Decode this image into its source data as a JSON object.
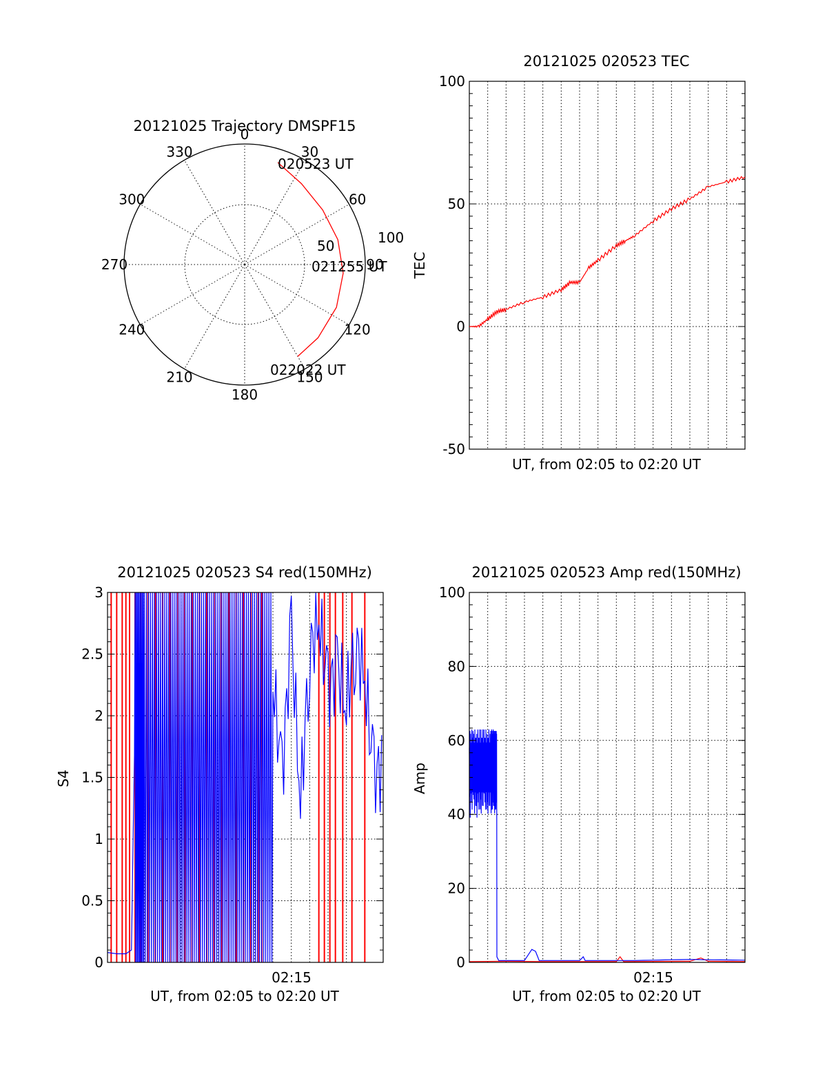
{
  "chart_data": [
    {
      "id": "trajectory",
      "type": "polar",
      "title": "20121025 Trajectory DMSPF15",
      "angle_labels": [
        "0",
        "30",
        "60",
        "90",
        "120",
        "150",
        "180",
        "210",
        "240",
        "270",
        "300",
        "330"
      ],
      "radius_labels": [
        "50",
        "100"
      ],
      "rmax": 100,
      "grid": true,
      "colors": {
        "track": "#ff0000"
      },
      "track": {
        "azimuth": [
          18,
          35,
          55,
          75,
          95,
          115,
          135,
          150
        ],
        "radius": [
          89,
          82,
          79,
          80,
          82,
          84,
          86,
          88
        ]
      },
      "annotations": [
        "020523 UT",
        "021255 UT",
        "022022 UT"
      ]
    },
    {
      "id": "tec",
      "type": "line",
      "title": "20121025 020523 TEC",
      "xlabel": "UT, from 02:05 to 02:20 UT",
      "ylabel": "TEC",
      "xlim": [
        0,
        15
      ],
      "ylim": [
        -50,
        100
      ],
      "yticks": [
        "100",
        "50",
        "0",
        "-50"
      ],
      "grid": true,
      "colors": {
        "line": "#ff0000"
      },
      "x": [
        0,
        0.5,
        1,
        1.5,
        2,
        3,
        4,
        5,
        5.5,
        6,
        6.5,
        7,
        8,
        8.5,
        9,
        10,
        11,
        12,
        13,
        14,
        15
      ],
      "y": [
        0,
        0,
        3,
        6,
        7,
        10,
        12,
        15,
        18,
        18,
        24,
        27,
        33,
        35,
        37,
        43,
        48,
        52,
        57,
        59,
        61
      ]
    },
    {
      "id": "s4",
      "type": "line",
      "title": "20121025 020523 S4 red(150MHz)",
      "xlabel": "UT, from 02:05 to 02:20 UT",
      "ylabel": "S4",
      "xlim": [
        0,
        15
      ],
      "ylim": [
        0,
        3
      ],
      "yticks": [
        "3",
        "2.5",
        "2",
        "1.5",
        "1",
        "0.5",
        "0"
      ],
      "xticks": [
        "02:15"
      ],
      "grid": true,
      "colors": {
        "red": "#ff0000",
        "blue": "#0000ff"
      },
      "series": [
        {
          "red_spikes_x": [
            0.2,
            0.5,
            0.8,
            1.0,
            1.2,
            1.5,
            1.8,
            2.2,
            2.6,
            3.0,
            3.4,
            3.8,
            4.2,
            4.6,
            5.0,
            5.4,
            5.8,
            6.2,
            6.6,
            7.0,
            7.4,
            7.8,
            8.2,
            8.4,
            11.5,
            11.8,
            12.1,
            12.4,
            12.8,
            13.3,
            14.0
          ]
        },
        {
          "blue_x": [
            0,
            0.5,
            1,
            1.3,
            1.5,
            2,
            3,
            4,
            5,
            6,
            7,
            8,
            9,
            9.5,
            10,
            10.5,
            11,
            11.5,
            12,
            12.5,
            13,
            13.5,
            14,
            14.5,
            15
          ],
          "blue_y": [
            0.08,
            0.07,
            0.07,
            0.1,
            2.0,
            2.9,
            2.8,
            2.9,
            2.7,
            2.8,
            2.9,
            2.6,
            2.3,
            1.5,
            2.7,
            1.3,
            2.5,
            2.8,
            2.2,
            2.4,
            2.1,
            2.6,
            2.3,
            1.5,
            1.6
          ]
        }
      ]
    },
    {
      "id": "amp",
      "type": "line",
      "title": "20121025 020523 Amp red(150MHz)",
      "xlabel": "UT, from 02:05 to 02:20 UT",
      "ylabel": "Amp",
      "xlim": [
        0,
        15
      ],
      "ylim": [
        0,
        100
      ],
      "yticks": [
        "100",
        "80",
        "60",
        "40",
        "20",
        "0"
      ],
      "xticks": [
        "02:15"
      ],
      "grid": true,
      "colors": {
        "red": "#ff0000",
        "blue": "#0000ff"
      },
      "series": [
        {
          "x": [
            0,
            0.2,
            0.4,
            0.6,
            0.8,
            1.0,
            1.2,
            1.3,
            1.4,
            1.5,
            1.6,
            2.0,
            3.0,
            3.4,
            3.6,
            3.8,
            4.0,
            5.0,
            6.0,
            6.2,
            6.3,
            7.0,
            9.0,
            12.0,
            13.0,
            15.0
          ],
          "y": [
            40,
            62,
            45,
            60,
            42,
            58,
            38,
            55,
            35,
            1.5,
            0.5,
            0.5,
            0.5,
            3.5,
            3,
            0.5,
            0.5,
            0.5,
            0.5,
            1.5,
            0.5,
            0.5,
            0.5,
            0.8,
            0.7,
            0.6
          ]
        },
        {
          "x": [
            0,
            2,
            4,
            8,
            8.2,
            8.4,
            12,
            12.6,
            13,
            15
          ],
          "y": [
            0.2,
            0.3,
            0.2,
            0.2,
            1.5,
            0.2,
            0.3,
            1.2,
            0.3,
            0.2
          ]
        }
      ]
    }
  ]
}
